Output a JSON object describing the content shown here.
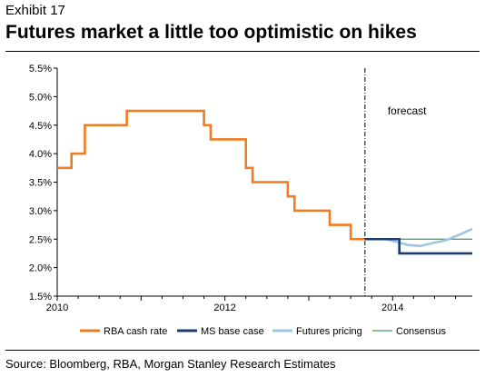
{
  "header": {
    "exhibit": "Exhibit 17",
    "title": "Futures market a little too optimistic on hikes"
  },
  "source": "Source: Bloomberg, RBA, Morgan Stanley Research Estimates",
  "chart_data": {
    "type": "line",
    "title": "Futures market a little too optimistic on hikes",
    "xlabel": "",
    "ylabel": "",
    "xlim": [
      2010.0,
      2014.95
    ],
    "ylim": [
      1.5,
      5.5
    ],
    "yticks": [
      "1.5%",
      "2.0%",
      "2.5%",
      "3.0%",
      "3.5%",
      "4.0%",
      "4.5%",
      "5.0%",
      "5.5%"
    ],
    "ytick_values": [
      1.5,
      2.0,
      2.5,
      3.0,
      3.5,
      4.0,
      4.5,
      5.0,
      5.5
    ],
    "xticks": [
      "2010",
      "2012",
      "2014"
    ],
    "xtick_values": [
      2010,
      2012,
      2014
    ],
    "grid": false,
    "legend_position": "bottom",
    "annotation": {
      "text": "forecast",
      "divider_x": 2013.67
    },
    "series": [
      {
        "name": "RBA cash rate",
        "color": "#f07c21",
        "step": true,
        "points": [
          [
            2010.0,
            3.75
          ],
          [
            2010.08,
            3.75
          ],
          [
            2010.17,
            4.0
          ],
          [
            2010.33,
            4.5
          ],
          [
            2010.83,
            4.75
          ],
          [
            2011.75,
            4.5
          ],
          [
            2011.83,
            4.25
          ],
          [
            2012.25,
            3.75
          ],
          [
            2012.33,
            3.5
          ],
          [
            2012.58,
            3.5
          ],
          [
            2012.75,
            3.25
          ],
          [
            2012.83,
            3.0
          ],
          [
            2013.25,
            2.75
          ],
          [
            2013.5,
            2.5
          ],
          [
            2013.67,
            2.5
          ]
        ]
      },
      {
        "name": "MS base case",
        "color": "#1c3b6e",
        "step": true,
        "points": [
          [
            2013.67,
            2.5
          ],
          [
            2014.0,
            2.5
          ],
          [
            2014.08,
            2.25
          ],
          [
            2014.95,
            2.25
          ]
        ]
      },
      {
        "name": "Futures pricing",
        "color": "#9dc6e0",
        "step": false,
        "points": [
          [
            2013.67,
            2.5
          ],
          [
            2013.83,
            2.5
          ],
          [
            2013.92,
            2.5
          ],
          [
            2014.0,
            2.47
          ],
          [
            2014.08,
            2.44
          ],
          [
            2014.17,
            2.4
          ],
          [
            2014.25,
            2.39
          ],
          [
            2014.33,
            2.38
          ],
          [
            2014.42,
            2.41
          ],
          [
            2014.5,
            2.44
          ],
          [
            2014.58,
            2.46
          ],
          [
            2014.67,
            2.5
          ],
          [
            2014.75,
            2.55
          ],
          [
            2014.83,
            2.6
          ],
          [
            2014.95,
            2.68
          ]
        ]
      },
      {
        "name": "Consensus",
        "color": "#3a9a5a",
        "step": false,
        "points": [
          [
            2013.67,
            2.5
          ],
          [
            2014.95,
            2.5
          ]
        ]
      }
    ]
  }
}
